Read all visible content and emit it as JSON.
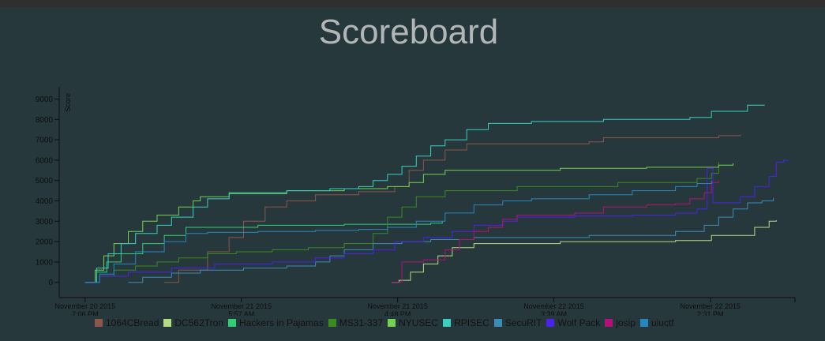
{
  "page": {
    "title": "Scoreboard"
  },
  "chart_data": {
    "type": "line",
    "title": "Scoreboard",
    "xlabel": "",
    "ylabel": "Score",
    "x_ticks": [
      {
        "line1": "November 20 2015",
        "line2": "7:06 PM",
        "t": 0
      },
      {
        "line1": "November 21 2015",
        "line2": "5:57 AM",
        "t": 10.85
      },
      {
        "line1": "November 21 2015",
        "line2": "4:48 PM",
        "t": 21.7
      },
      {
        "line1": "November 22 2015",
        "line2": "3:39 AM",
        "t": 32.55
      },
      {
        "line1": "November 22 2015",
        "line2": "2:31 PM",
        "t": 43.42
      }
    ],
    "x_unit": "hours since November 20 2015 7:06 PM",
    "xlim": [
      -1.8,
      49.3
    ],
    "ylim": [
      -750,
      9600
    ],
    "y_ticks": [
      0,
      1000,
      2000,
      3000,
      4000,
      5000,
      6000,
      7000,
      8000,
      9000
    ],
    "grid": false,
    "legend_position": "bottom",
    "series": [
      {
        "name": "1064CBread",
        "color": "#8c564b",
        "step": true,
        "points": [
          [
            5.5,
            0
          ],
          [
            6.5,
            600
          ],
          [
            8.5,
            1500
          ],
          [
            10,
            2200
          ],
          [
            11,
            3000
          ],
          [
            12.5,
            3700
          ],
          [
            14,
            4000
          ],
          [
            16,
            4300
          ],
          [
            19,
            4450
          ],
          [
            21.5,
            4700
          ],
          [
            22.5,
            5500
          ],
          [
            23.5,
            6000
          ],
          [
            25,
            6500
          ],
          [
            26.5,
            6800
          ],
          [
            35,
            6900
          ],
          [
            36,
            7100
          ],
          [
            44,
            7200
          ],
          [
            45.5,
            7250
          ]
        ]
      },
      {
        "name": "DC562Tron",
        "color": "#b5dd7f",
        "step": true,
        "points": [
          [
            21.3,
            0
          ],
          [
            21.8,
            100
          ],
          [
            22.6,
            500
          ],
          [
            23.5,
            900
          ],
          [
            24.5,
            1300
          ],
          [
            25.5,
            1700
          ],
          [
            27,
            1900
          ],
          [
            33,
            2000
          ],
          [
            41,
            2050
          ],
          [
            43.5,
            2300
          ],
          [
            46.5,
            2700
          ],
          [
            47.5,
            3000
          ],
          [
            48,
            3050
          ]
        ]
      },
      {
        "name": "Hackers in Pajamas",
        "color": "#2fcf75",
        "step": true,
        "points": [
          [
            0,
            0
          ],
          [
            0.8,
            500
          ],
          [
            1.5,
            1000
          ],
          [
            2.5,
            1400
          ],
          [
            4,
            1900
          ],
          [
            5.5,
            2300
          ],
          [
            7,
            2700
          ],
          [
            12,
            2800
          ],
          [
            18,
            2850
          ],
          [
            24,
            2900
          ],
          [
            24.8,
            3000
          ]
        ]
      },
      {
        "name": "MS31-337",
        "color": "#3a8c1f",
        "step": true,
        "points": [
          [
            0,
            0
          ],
          [
            1,
            300
          ],
          [
            2,
            600
          ],
          [
            3.5,
            800
          ],
          [
            5,
            1000
          ],
          [
            6.5,
            1200
          ],
          [
            8.5,
            1400
          ],
          [
            10.5,
            1500
          ],
          [
            13,
            1600
          ],
          [
            15.5,
            1700
          ],
          [
            18,
            1900
          ],
          [
            20,
            2400
          ],
          [
            21,
            3200
          ],
          [
            22,
            3700
          ],
          [
            23,
            4200
          ],
          [
            25,
            4500
          ],
          [
            30,
            4700
          ],
          [
            37,
            4900
          ],
          [
            42.5,
            5100
          ],
          [
            43.5,
            5350
          ],
          [
            44,
            5900
          ]
        ]
      },
      {
        "name": "NYUSEC",
        "color": "#72d24e",
        "step": true,
        "points": [
          [
            0,
            0
          ],
          [
            0.7,
            600
          ],
          [
            1.3,
            1300
          ],
          [
            2,
            1900
          ],
          [
            3,
            2500
          ],
          [
            4,
            3000
          ],
          [
            5,
            3300
          ],
          [
            6.5,
            3700
          ],
          [
            7.5,
            4000
          ],
          [
            8,
            4200
          ],
          [
            10,
            4350
          ],
          [
            14,
            4500
          ],
          [
            18,
            4600
          ],
          [
            21,
            4700
          ],
          [
            22.5,
            4900
          ],
          [
            23.5,
            5300
          ],
          [
            25,
            5500
          ],
          [
            33,
            5600
          ],
          [
            39,
            5650
          ],
          [
            44,
            5750
          ],
          [
            45,
            5850
          ]
        ]
      },
      {
        "name": "RPISEC",
        "color": "#38d0bf",
        "step": true,
        "points": [
          [
            0,
            0
          ],
          [
            0.8,
            700
          ],
          [
            1.6,
            1400
          ],
          [
            2.5,
            1900
          ],
          [
            3.5,
            2400
          ],
          [
            5,
            2800
          ],
          [
            6,
            3200
          ],
          [
            7.5,
            3700
          ],
          [
            8.5,
            4100
          ],
          [
            10,
            4400
          ],
          [
            14,
            4500
          ],
          [
            17,
            4600
          ],
          [
            19,
            4700
          ],
          [
            20,
            5000
          ],
          [
            21,
            5300
          ],
          [
            22,
            5700
          ],
          [
            23,
            6200
          ],
          [
            24,
            6700
          ],
          [
            25,
            7000
          ],
          [
            26.5,
            7500
          ],
          [
            28,
            7800
          ],
          [
            31,
            7900
          ],
          [
            36,
            8000
          ],
          [
            42,
            8100
          ],
          [
            43.5,
            8400
          ],
          [
            46,
            8700
          ],
          [
            47.2,
            8700
          ]
        ]
      },
      {
        "name": "SecuRIT",
        "color": "#3b8db8",
        "step": true,
        "points": [
          [
            3,
            0
          ],
          [
            4,
            250
          ],
          [
            6,
            450
          ],
          [
            8,
            600
          ],
          [
            11,
            700
          ],
          [
            14,
            800
          ],
          [
            16,
            1000
          ],
          [
            17,
            1300
          ],
          [
            18,
            1600
          ],
          [
            20,
            1900
          ],
          [
            22,
            2000
          ],
          [
            24,
            2100
          ],
          [
            27,
            2200
          ],
          [
            35,
            2300
          ],
          [
            41,
            2500
          ],
          [
            43,
            2800
          ],
          [
            44,
            3200
          ],
          [
            45,
            3600
          ],
          [
            46,
            3900
          ],
          [
            47,
            4000
          ],
          [
            47.8,
            4150
          ]
        ]
      },
      {
        "name": "Wolf Pack",
        "color": "#4a22ee",
        "step": true,
        "points": [
          [
            0,
            0
          ],
          [
            1,
            300
          ],
          [
            3,
            500
          ],
          [
            6,
            700
          ],
          [
            9,
            900
          ],
          [
            13,
            1000
          ],
          [
            16,
            1200
          ],
          [
            18,
            1400
          ],
          [
            20,
            1600
          ],
          [
            21.5,
            2000
          ],
          [
            23.5,
            2200
          ],
          [
            25.5,
            2500
          ],
          [
            27,
            2800
          ],
          [
            29,
            3000
          ],
          [
            30,
            3200
          ],
          [
            34,
            3250
          ],
          [
            38,
            3300
          ],
          [
            41,
            3400
          ],
          [
            42.5,
            3600
          ],
          [
            43.2,
            5600
          ],
          [
            43.6,
            3900
          ],
          [
            45.5,
            4200
          ],
          [
            46.5,
            4700
          ],
          [
            47.5,
            5200
          ],
          [
            48,
            5900
          ],
          [
            48.5,
            6000
          ],
          [
            48.8,
            6000
          ]
        ]
      },
      {
        "name": "josip",
        "color": "#b3117a",
        "step": true,
        "points": [
          [
            21.3,
            0
          ],
          [
            22,
            1000
          ],
          [
            23.5,
            1100
          ],
          [
            25,
            1600
          ],
          [
            26,
            2100
          ],
          [
            27,
            2500
          ],
          [
            28,
            2700
          ],
          [
            29,
            3100
          ],
          [
            30,
            3300
          ],
          [
            34,
            3400
          ],
          [
            36,
            3700
          ],
          [
            39,
            3800
          ],
          [
            41,
            3850
          ],
          [
            42,
            4100
          ],
          [
            43,
            4400
          ],
          [
            43.5,
            4900
          ],
          [
            44,
            5000
          ]
        ]
      },
      {
        "name": "uiuctf",
        "color": "#2488c0",
        "step": true,
        "points": [
          [
            0,
            0
          ],
          [
            1,
            400
          ],
          [
            2,
            900
          ],
          [
            3.5,
            1500
          ],
          [
            5.5,
            2000
          ],
          [
            7,
            2400
          ],
          [
            8.5,
            2450
          ],
          [
            12,
            2500
          ],
          [
            16,
            2550
          ],
          [
            19,
            2600
          ],
          [
            21,
            2700
          ],
          [
            23,
            3000
          ],
          [
            25,
            3400
          ],
          [
            27,
            3800
          ],
          [
            29,
            4000
          ],
          [
            31,
            4100
          ],
          [
            35,
            4300
          ],
          [
            38,
            4500
          ],
          [
            41,
            4700
          ],
          [
            42.5,
            4850
          ],
          [
            43.5,
            5000
          ]
        ]
      }
    ]
  }
}
